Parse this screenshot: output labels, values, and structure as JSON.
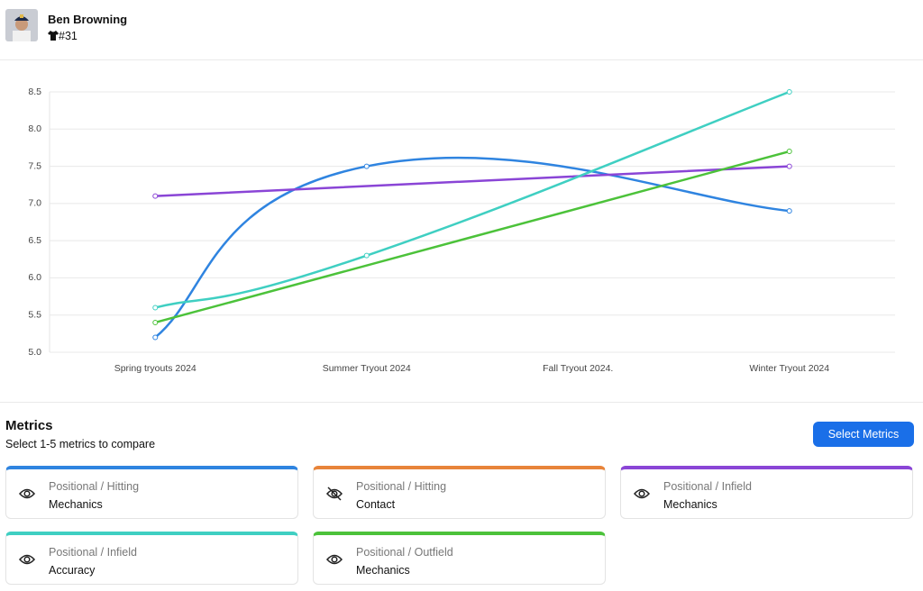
{
  "header": {
    "name": "Ben Browning",
    "jersey": "#31"
  },
  "chart_data": {
    "type": "line",
    "categories": [
      "Spring tryouts 2024",
      "Summer Tryout 2024",
      "Fall Tryout 2024.",
      "Winter Tryout 2024"
    ],
    "series": [
      {
        "color": "#2f84e0",
        "values": [
          5.2,
          7.5,
          null,
          6.9
        ]
      },
      {
        "color": "#8a45d6",
        "values": [
          7.1,
          null,
          null,
          7.5
        ]
      },
      {
        "color": "#3fcfc2",
        "values": [
          5.6,
          6.3,
          null,
          8.5
        ]
      },
      {
        "color": "#4cc23a",
        "values": [
          5.4,
          null,
          null,
          7.7
        ]
      }
    ],
    "ylim": [
      5,
      8.5
    ],
    "yticks": [
      {
        "value": 5,
        "label": "5.0"
      },
      5.5,
      {
        "value": 6,
        "label": "6.0"
      },
      6.5,
      {
        "value": 7,
        "label": "7.0"
      },
      7.5,
      {
        "value": 8,
        "label": "8.0"
      },
      8.5
    ],
    "grid": true,
    "span_gaps": true,
    "smooth": true
  },
  "metrics_panel": {
    "title": "Metrics",
    "subtitle": "Select 1-5 metrics to compare",
    "button": "Select Metrics",
    "metrics": [
      {
        "group": "Positional / Hitting",
        "name": "Mechanics",
        "color": "#2f84e0",
        "visible": true
      },
      {
        "group": "Positional / Hitting",
        "name": "Contact",
        "color": "#e8843a",
        "visible": false
      },
      {
        "group": "Positional / Infield",
        "name": "Mechanics",
        "color": "#8a45d6",
        "visible": true
      },
      {
        "group": "Positional / Infield",
        "name": "Accuracy",
        "color": "#3fcfc2",
        "visible": true
      },
      {
        "group": "Positional / Outfield",
        "name": "Mechanics",
        "color": "#4cc23a",
        "visible": true
      }
    ]
  }
}
